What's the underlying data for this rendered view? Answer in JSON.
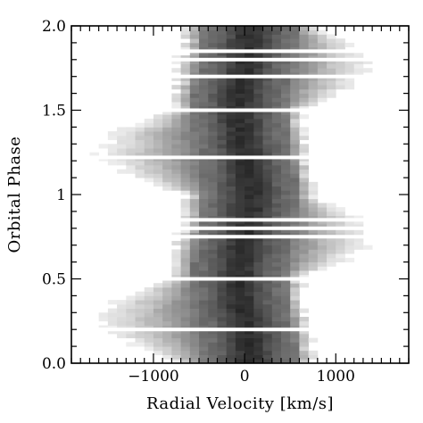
{
  "chart_data": {
    "type": "heatmap",
    "title": "",
    "xlabel": "Radial Velocity [km/s]",
    "ylabel": "Orbital Phase",
    "xlim": [
      -1900,
      1800
    ],
    "ylim": [
      0.0,
      2.0
    ],
    "x_ticks": [
      {
        "value": -1000,
        "label": "−1000"
      },
      {
        "value": 0,
        "label": "0"
      },
      {
        "value": 1000,
        "label": "1000"
      }
    ],
    "y_ticks": [
      {
        "value": 0.0,
        "label": "0.0"
      },
      {
        "value": 0.5,
        "label": "0.5"
      },
      {
        "value": 1.0,
        "label": "1"
      },
      {
        "value": 1.5,
        "label": "1.5"
      },
      {
        "value": 2.0,
        "label": "2.0"
      }
    ],
    "x_minor_step": 100,
    "y_minor_step": 0.1,
    "colormap": "inverted-greyscale",
    "velocity_bin_width": 100,
    "phase_bin_width": 0.025,
    "data_gaps_phase": [
      [
        0.19,
        0.21
      ],
      [
        0.49,
        0.51
      ],
      [
        0.74,
        0.76
      ],
      [
        0.79,
        0.81
      ],
      [
        0.84,
        0.86
      ],
      [
        1.21,
        1.23
      ],
      [
        1.49,
        1.51
      ],
      [
        1.69,
        1.71
      ],
      [
        1.79,
        1.81
      ],
      [
        1.84,
        1.86
      ]
    ],
    "emission_model": {
      "line_center_kms": 0,
      "core_halfwidth_kms": 500,
      "wing_extent_blue_kms": [
        -700,
        -1650
      ],
      "wing_extent_red_kms": [
        650,
        1400
      ]
    }
  }
}
